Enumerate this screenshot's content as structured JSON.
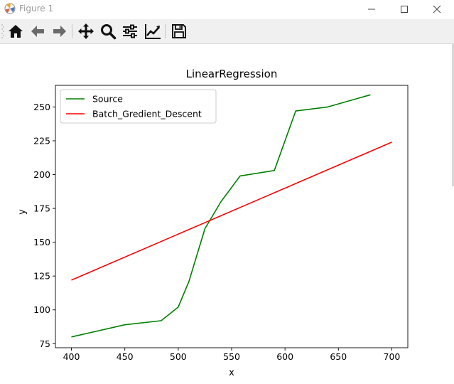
{
  "window": {
    "title": "Figure 1"
  },
  "toolbar": {
    "buttons": [
      {
        "name": "home",
        "icon": "home-icon"
      },
      {
        "name": "back",
        "icon": "arrow-left-icon"
      },
      {
        "name": "forward",
        "icon": "arrow-right-icon"
      },
      {
        "name": "pan",
        "icon": "move-icon"
      },
      {
        "name": "zoom",
        "icon": "magnifier-icon"
      },
      {
        "name": "configure-subplots",
        "icon": "sliders-icon"
      },
      {
        "name": "edit-axis",
        "icon": "line-chart-icon"
      },
      {
        "name": "save",
        "icon": "floppy-disk-icon"
      }
    ]
  },
  "chart_data": {
    "type": "line",
    "title": "LinearRegression",
    "xlabel": "x",
    "ylabel": "y",
    "xlim": [
      385,
      715
    ],
    "ylim": [
      72,
      266
    ],
    "xticks": [
      400,
      450,
      500,
      550,
      600,
      650,
      700
    ],
    "yticks": [
      75,
      100,
      125,
      150,
      175,
      200,
      225,
      250
    ],
    "grid": false,
    "legend": "top-left",
    "series": [
      {
        "name": "Source",
        "color": "#008000",
        "x": [
          400,
          450,
          484,
          500,
          510,
          525,
          540,
          558,
          590,
          610,
          640,
          680
        ],
        "y": [
          80,
          89,
          92,
          102,
          121,
          160,
          180,
          199,
          203,
          247,
          250,
          259
        ]
      },
      {
        "name": "Batch_Gredient_Descent",
        "color": "#ff0000",
        "x": [
          400,
          700
        ],
        "y": [
          122,
          224
        ]
      }
    ]
  }
}
